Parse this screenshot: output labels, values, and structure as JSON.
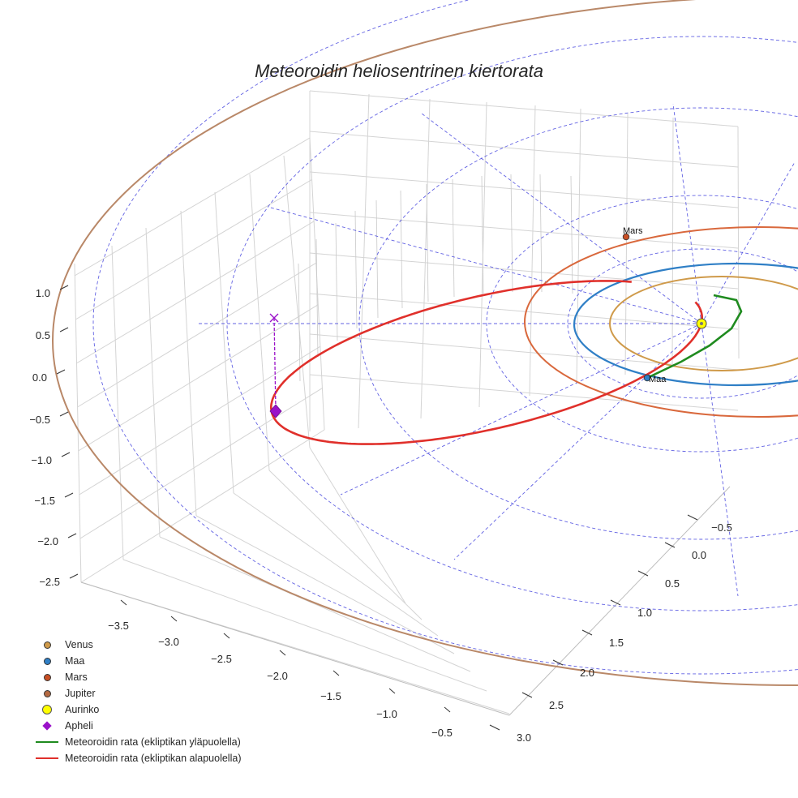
{
  "chart_data": {
    "type": "3d-orbit",
    "title": "Meteoroidin heliosentrinen kiertorata",
    "x_ticks": [
      "−3.5",
      "−3.0",
      "−2.5",
      "−2.0",
      "−1.5",
      "−1.0",
      "−0.5"
    ],
    "y_ticks": [
      "−0.5",
      "0.0",
      "0.5",
      "1.0",
      "1.5",
      "2.0",
      "2.5",
      "3.0"
    ],
    "z_ticks": [
      "1.0",
      "0.5",
      "0.0",
      "−0.5",
      "−1.0",
      "−1.5",
      "−2.0",
      "−2.5"
    ],
    "xlim": [
      -3.8,
      -0.3
    ],
    "ylim": [
      -0.7,
      3.0
    ],
    "zlim": [
      -2.6,
      1.2
    ],
    "planets": [
      {
        "name": "Venus",
        "radius_au": 0.72,
        "color": "#cf9a4a"
      },
      {
        "name": "Maa",
        "radius_au": 1.0,
        "color": "#2f7fc6"
      },
      {
        "name": "Mars",
        "radius_au": 1.52,
        "color": "#d9683c"
      },
      {
        "name": "Jupiter",
        "radius_au": 5.2,
        "color": "#b98868"
      }
    ],
    "planet_labels": {
      "mars": "Mars",
      "earth": "Maa"
    },
    "sun": {
      "name": "Aurinko",
      "color": "#ffff00"
    },
    "aphelion": {
      "name": "Apheli",
      "color": "#9a11c9"
    },
    "meteoroid_orbit": {
      "above_label": "Meteoroidin rata (ekliptikan yläpuolella)",
      "below_label": "Meteoroidin rata (ekliptikan alapuolella)",
      "above_color": "#1f8b1f",
      "below_color": "#e0302b"
    },
    "legend": [
      {
        "label": "Venus",
        "kind": "dot",
        "color": "#cf9a4a"
      },
      {
        "label": "Maa",
        "kind": "dot",
        "color": "#2f7fc6"
      },
      {
        "label": "Mars",
        "kind": "dot",
        "color": "#c84f24"
      },
      {
        "label": "Jupiter",
        "kind": "dot",
        "color": "#b56a42"
      },
      {
        "label": "Aurinko",
        "kind": "sun",
        "color": "#ffff00"
      },
      {
        "label": "Apheli",
        "kind": "diamond",
        "color": "#9a11c9"
      },
      {
        "label": "Meteoroidin rata (ekliptikan yläpuolella)",
        "kind": "line",
        "color": "#1f8b1f"
      },
      {
        "label": "Meteoroidin rata (ekliptikan alapuolella)",
        "kind": "line",
        "color": "#e0302b"
      }
    ]
  }
}
